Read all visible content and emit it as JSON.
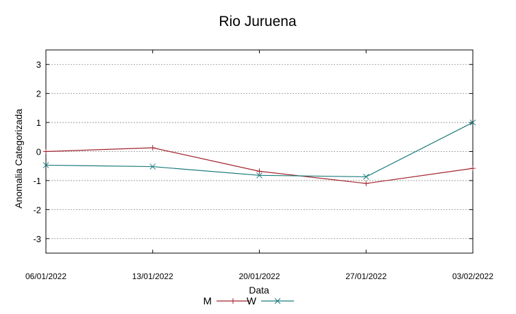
{
  "chart_data": {
    "type": "line",
    "title": "Rio Juruena",
    "xlabel": "Data",
    "ylabel": "Anomalia Categorizada",
    "categories": [
      "06/01/2022",
      "13/01/2022",
      "20/01/2022",
      "27/01/2022",
      "03/02/2022"
    ],
    "yticks": [
      "3",
      "2",
      "1",
      "0",
      "-1",
      "-2",
      "-3"
    ],
    "ylim": [
      -3.5,
      3.5
    ],
    "grid": true,
    "legend_position": "bottom-center",
    "series": [
      {
        "name": "M",
        "color": "#a0212b",
        "marker": "plus",
        "values": [
          0.0,
          0.13,
          -0.68,
          -1.1,
          -0.58
        ]
      },
      {
        "name": "W",
        "color": "#1a7a7a",
        "marker": "x",
        "values": [
          -0.47,
          -0.52,
          -0.82,
          -0.87,
          1.0
        ]
      }
    ]
  }
}
